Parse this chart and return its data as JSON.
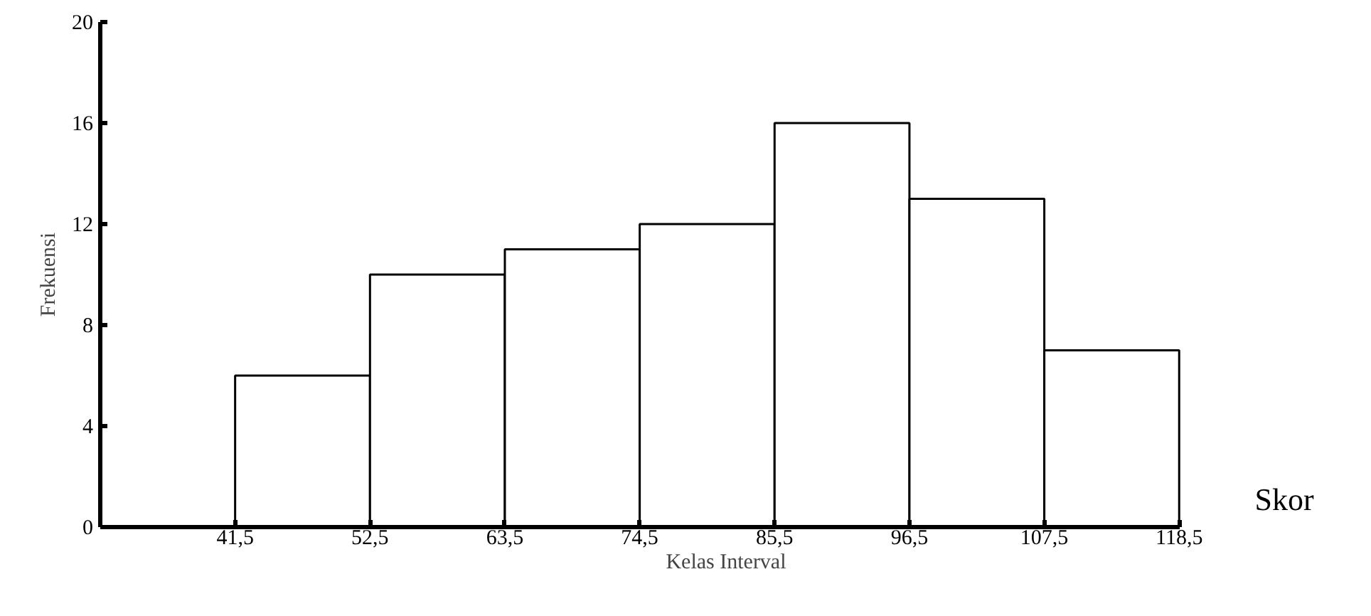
{
  "chart_data": {
    "type": "histogram",
    "xlabel": "Kelas Interval",
    "ylabel": "Frekuensi",
    "bins": [
      41.5,
      52.5,
      63.5,
      74.5,
      85.5,
      96.5,
      107.5,
      118.5
    ],
    "values": [
      6,
      10,
      11,
      12,
      16,
      13,
      7
    ],
    "color": "#ffffff",
    "xlim": [
      30.5,
      118.5
    ],
    "xticks": [
      {
        "value": 41.5,
        "label": "41,5"
      },
      {
        "value": 52.5,
        "label": "52,5"
      },
      {
        "value": 63.5,
        "label": "63,5"
      },
      {
        "value": 74.5,
        "label": "74,5"
      },
      {
        "value": 85.5,
        "label": "85,5"
      },
      {
        "value": 96.5,
        "label": "96,5"
      },
      {
        "value": 107.5,
        "label": "107,5"
      },
      {
        "value": 118.5,
        "label": "118,5"
      }
    ],
    "ylim": [
      0,
      20
    ],
    "yticks": [
      0,
      4,
      8,
      12,
      16,
      20
    ],
    "annotations": [
      "Skor"
    ],
    "grid": false
  }
}
